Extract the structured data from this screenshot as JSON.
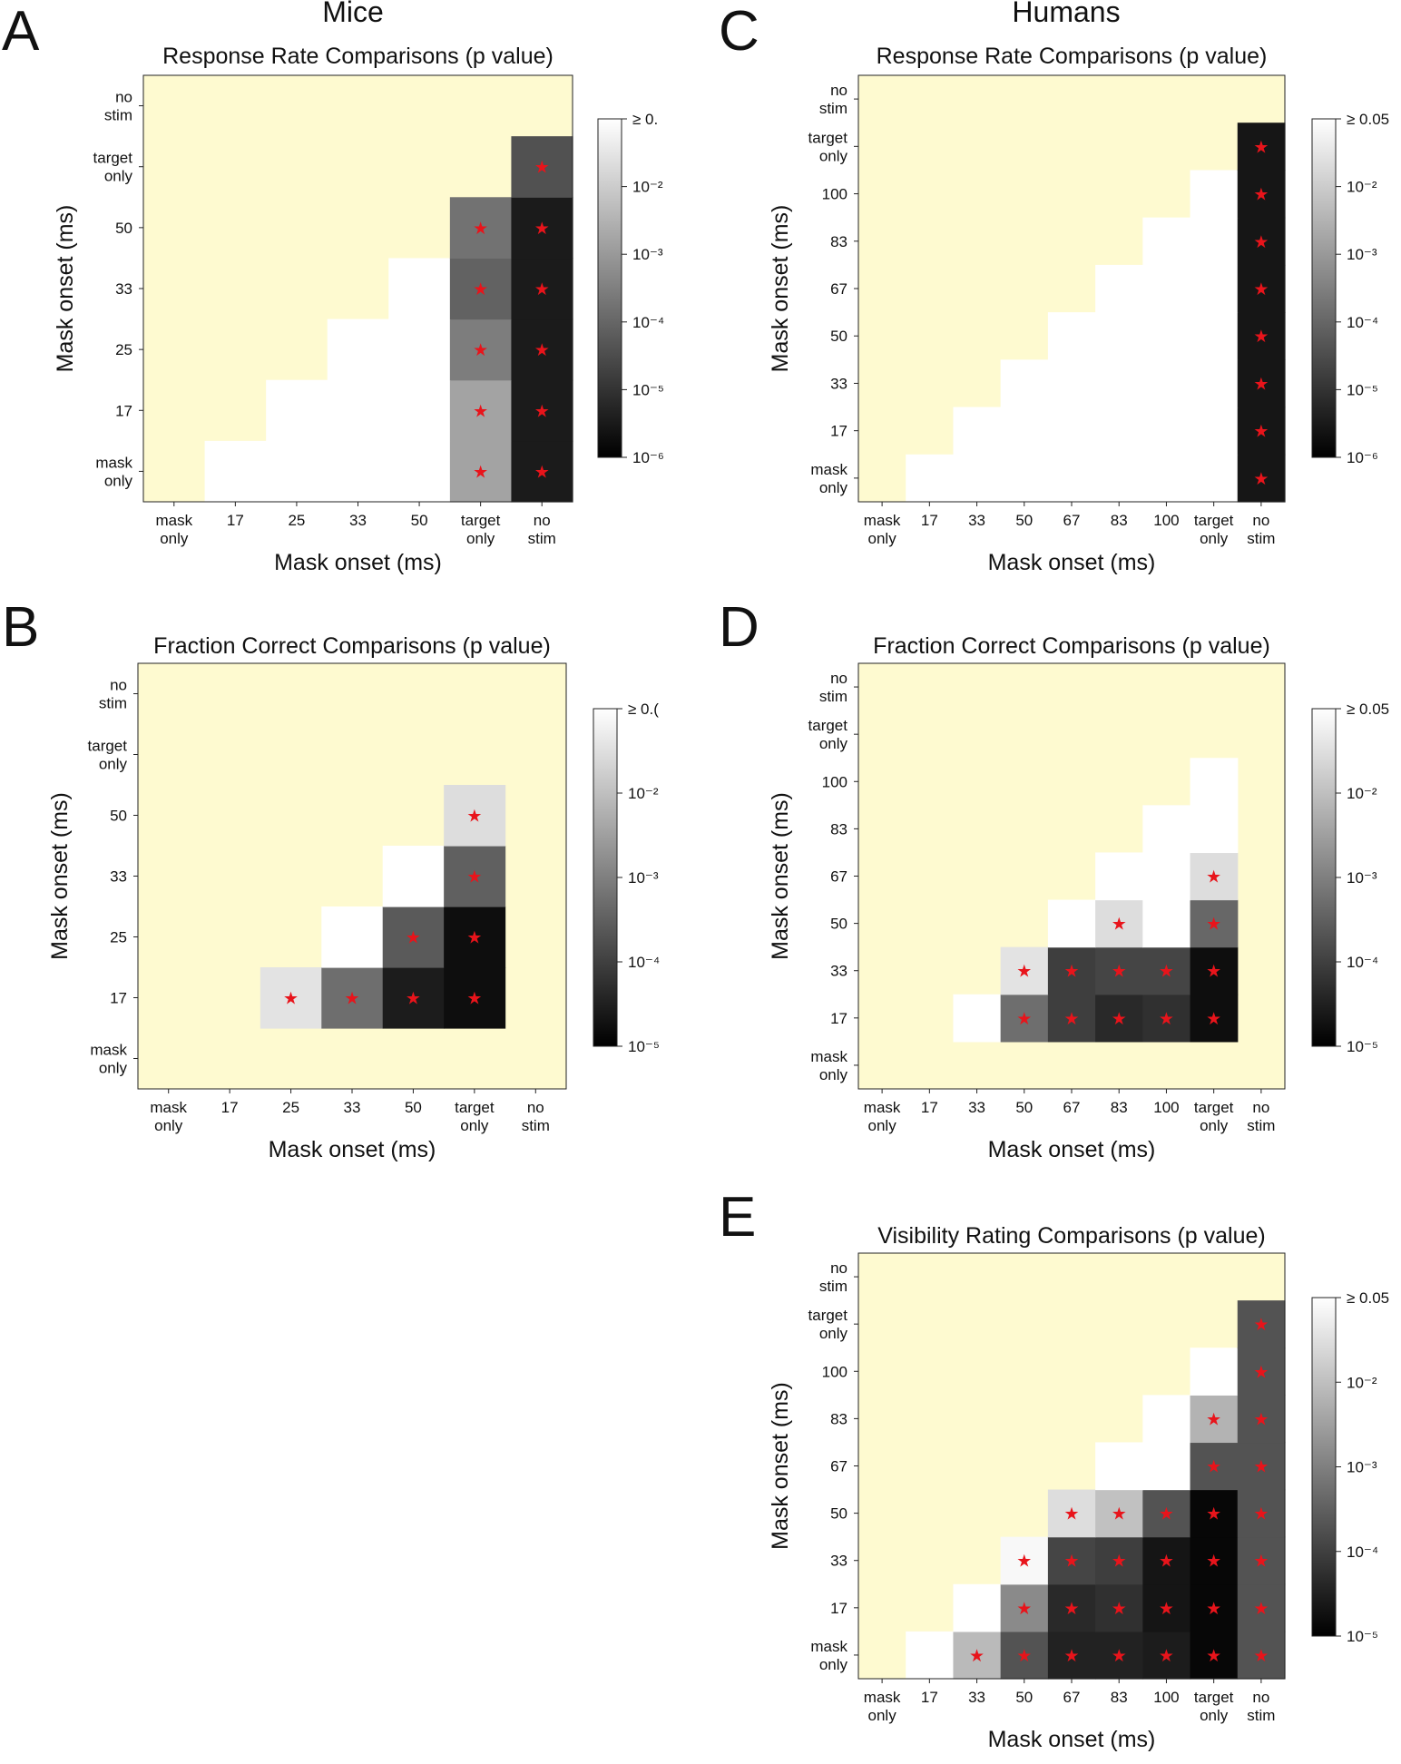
{
  "figure": {
    "column_titles": {
      "mice": "Mice",
      "humans": "Humans"
    }
  },
  "chart_data": [
    {
      "id": "A",
      "type": "heatmap",
      "panel_letter": "A",
      "title": "Response Rate Comparisons (p value)",
      "xlabel": "Mask onset (ms)",
      "ylabel": "Mask onset (ms)",
      "tick_labels": [
        "mask only",
        "17",
        "25",
        "33",
        "50",
        "target only",
        "no stim"
      ],
      "colorbar": {
        "label_min": "10⁻⁶",
        "labels": [
          "≥ 0.",
          "10⁻²",
          "10⁻³",
          "10⁻⁴",
          "10⁻⁵",
          "10⁻⁶"
        ],
        "log_min": -6,
        "log_max": -1.3
      },
      "cells": [
        {
          "row": 0,
          "col": 1,
          "log10p": -1.3,
          "sig": false
        },
        {
          "row": 0,
          "col": 2,
          "log10p": -1.3,
          "sig": false
        },
        {
          "row": 0,
          "col": 3,
          "log10p": -1.3,
          "sig": false
        },
        {
          "row": 0,
          "col": 4,
          "log10p": -1.3,
          "sig": false
        },
        {
          "row": 0,
          "col": 5,
          "log10p": -3.0,
          "sig": true
        },
        {
          "row": 0,
          "col": 6,
          "log10p": -5.5,
          "sig": true
        },
        {
          "row": 1,
          "col": 2,
          "log10p": -1.3,
          "sig": false
        },
        {
          "row": 1,
          "col": 3,
          "log10p": -1.3,
          "sig": false
        },
        {
          "row": 1,
          "col": 4,
          "log10p": -1.3,
          "sig": false
        },
        {
          "row": 1,
          "col": 5,
          "log10p": -3.0,
          "sig": true
        },
        {
          "row": 1,
          "col": 6,
          "log10p": -5.5,
          "sig": true
        },
        {
          "row": 2,
          "col": 3,
          "log10p": -1.3,
          "sig": false
        },
        {
          "row": 2,
          "col": 4,
          "log10p": -1.3,
          "sig": false
        },
        {
          "row": 2,
          "col": 5,
          "log10p": -3.7,
          "sig": true
        },
        {
          "row": 2,
          "col": 6,
          "log10p": -5.5,
          "sig": true
        },
        {
          "row": 3,
          "col": 4,
          "log10p": -1.3,
          "sig": false
        },
        {
          "row": 3,
          "col": 5,
          "log10p": -4.2,
          "sig": true
        },
        {
          "row": 3,
          "col": 6,
          "log10p": -5.5,
          "sig": true
        },
        {
          "row": 4,
          "col": 5,
          "log10p": -3.9,
          "sig": true
        },
        {
          "row": 4,
          "col": 6,
          "log10p": -5.5,
          "sig": true
        },
        {
          "row": 5,
          "col": 6,
          "log10p": -4.5,
          "sig": true
        }
      ]
    },
    {
      "id": "B",
      "type": "heatmap",
      "panel_letter": "B",
      "title": "Fraction Correct Comparisons (p value)",
      "xlabel": "Mask onset (ms)",
      "ylabel": "Mask onset (ms)",
      "tick_labels": [
        "mask only",
        "17",
        "25",
        "33",
        "50",
        "target only",
        "no stim"
      ],
      "colorbar": {
        "labels": [
          "≥ 0.(",
          "10⁻²",
          "10⁻³",
          "10⁻⁴",
          "10⁻⁵"
        ],
        "log_min": -5,
        "log_max": -1.3
      },
      "cells": [
        {
          "row": 1,
          "col": 2,
          "log10p": -1.7,
          "sig": true
        },
        {
          "row": 1,
          "col": 3,
          "log10p": -3.4,
          "sig": true
        },
        {
          "row": 1,
          "col": 4,
          "log10p": -4.6,
          "sig": true
        },
        {
          "row": 1,
          "col": 5,
          "log10p": -4.8,
          "sig": true
        },
        {
          "row": 2,
          "col": 3,
          "log10p": -1.3,
          "sig": false
        },
        {
          "row": 2,
          "col": 4,
          "log10p": -3.7,
          "sig": true
        },
        {
          "row": 2,
          "col": 5,
          "log10p": -4.8,
          "sig": true
        },
        {
          "row": 3,
          "col": 4,
          "log10p": -1.3,
          "sig": false
        },
        {
          "row": 3,
          "col": 5,
          "log10p": -3.6,
          "sig": true
        },
        {
          "row": 4,
          "col": 5,
          "log10p": -1.8,
          "sig": true
        }
      ]
    },
    {
      "id": "C",
      "type": "heatmap",
      "panel_letter": "C",
      "title": "Response Rate Comparisons (p value)",
      "xlabel": "Mask onset (ms)",
      "ylabel": "Mask onset (ms)",
      "tick_labels": [
        "mask only",
        "17",
        "33",
        "50",
        "67",
        "83",
        "100",
        "target only",
        "no stim"
      ],
      "colorbar": {
        "labels": [
          "≥ 0.05",
          "10⁻²",
          "10⁻³",
          "10⁻⁴",
          "10⁻⁵",
          "10⁻⁶"
        ],
        "log_min": -6,
        "log_max": -1.3
      },
      "cells": [
        {
          "row": 0,
          "col": 1,
          "log10p": -1.3,
          "sig": false
        },
        {
          "row": 0,
          "col": 2,
          "log10p": -1.3,
          "sig": false
        },
        {
          "row": 0,
          "col": 3,
          "log10p": -1.3,
          "sig": false
        },
        {
          "row": 0,
          "col": 4,
          "log10p": -1.3,
          "sig": false
        },
        {
          "row": 0,
          "col": 5,
          "log10p": -1.3,
          "sig": false
        },
        {
          "row": 0,
          "col": 6,
          "log10p": -1.3,
          "sig": false
        },
        {
          "row": 0,
          "col": 7,
          "log10p": -1.3,
          "sig": false
        },
        {
          "row": 0,
          "col": 8,
          "log10p": -5.6,
          "sig": true
        },
        {
          "row": 1,
          "col": 2,
          "log10p": -1.3,
          "sig": false
        },
        {
          "row": 1,
          "col": 3,
          "log10p": -1.3,
          "sig": false
        },
        {
          "row": 1,
          "col": 4,
          "log10p": -1.3,
          "sig": false
        },
        {
          "row": 1,
          "col": 5,
          "log10p": -1.3,
          "sig": false
        },
        {
          "row": 1,
          "col": 6,
          "log10p": -1.3,
          "sig": false
        },
        {
          "row": 1,
          "col": 7,
          "log10p": -1.3,
          "sig": false
        },
        {
          "row": 1,
          "col": 8,
          "log10p": -5.6,
          "sig": true
        },
        {
          "row": 2,
          "col": 3,
          "log10p": -1.3,
          "sig": false
        },
        {
          "row": 2,
          "col": 4,
          "log10p": -1.3,
          "sig": false
        },
        {
          "row": 2,
          "col": 5,
          "log10p": -1.3,
          "sig": false
        },
        {
          "row": 2,
          "col": 6,
          "log10p": -1.3,
          "sig": false
        },
        {
          "row": 2,
          "col": 7,
          "log10p": -1.3,
          "sig": false
        },
        {
          "row": 2,
          "col": 8,
          "log10p": -5.6,
          "sig": true
        },
        {
          "row": 3,
          "col": 4,
          "log10p": -1.3,
          "sig": false
        },
        {
          "row": 3,
          "col": 5,
          "log10p": -1.3,
          "sig": false
        },
        {
          "row": 3,
          "col": 6,
          "log10p": -1.3,
          "sig": false
        },
        {
          "row": 3,
          "col": 7,
          "log10p": -1.3,
          "sig": false
        },
        {
          "row": 3,
          "col": 8,
          "log10p": -5.6,
          "sig": true
        },
        {
          "row": 4,
          "col": 5,
          "log10p": -1.3,
          "sig": false
        },
        {
          "row": 4,
          "col": 6,
          "log10p": -1.3,
          "sig": false
        },
        {
          "row": 4,
          "col": 7,
          "log10p": -1.3,
          "sig": false
        },
        {
          "row": 4,
          "col": 8,
          "log10p": -5.6,
          "sig": true
        },
        {
          "row": 5,
          "col": 6,
          "log10p": -1.3,
          "sig": false
        },
        {
          "row": 5,
          "col": 7,
          "log10p": -1.3,
          "sig": false
        },
        {
          "row": 5,
          "col": 8,
          "log10p": -5.6,
          "sig": true
        },
        {
          "row": 6,
          "col": 7,
          "log10p": -1.3,
          "sig": false
        },
        {
          "row": 6,
          "col": 8,
          "log10p": -5.6,
          "sig": true
        },
        {
          "row": 7,
          "col": 8,
          "log10p": -5.6,
          "sig": true
        }
      ]
    },
    {
      "id": "D",
      "type": "heatmap",
      "panel_letter": "D",
      "title": "Fraction Correct Comparisons (p value)",
      "xlabel": "Mask onset (ms)",
      "ylabel": "Mask onset (ms)",
      "tick_labels": [
        "mask only",
        "17",
        "33",
        "50",
        "67",
        "83",
        "100",
        "target only",
        "no stim"
      ],
      "colorbar": {
        "labels": [
          "≥ 0.05",
          "10⁻²",
          "10⁻³",
          "10⁻⁴",
          "10⁻⁵"
        ],
        "log_min": -5,
        "log_max": -1.3
      },
      "cells": [
        {
          "row": 1,
          "col": 2,
          "log10p": -1.3,
          "sig": false
        },
        {
          "row": 1,
          "col": 3,
          "log10p": -3.4,
          "sig": true
        },
        {
          "row": 1,
          "col": 4,
          "log10p": -4.1,
          "sig": true
        },
        {
          "row": 1,
          "col": 5,
          "log10p": -4.4,
          "sig": true
        },
        {
          "row": 1,
          "col": 6,
          "log10p": -4.3,
          "sig": true
        },
        {
          "row": 1,
          "col": 7,
          "log10p": -4.8,
          "sig": true
        },
        {
          "row": 2,
          "col": 3,
          "log10p": -1.7,
          "sig": true
        },
        {
          "row": 2,
          "col": 4,
          "log10p": -4.1,
          "sig": true
        },
        {
          "row": 2,
          "col": 5,
          "log10p": -4.0,
          "sig": true
        },
        {
          "row": 2,
          "col": 6,
          "log10p": -4.0,
          "sig": true
        },
        {
          "row": 2,
          "col": 7,
          "log10p": -4.8,
          "sig": true
        },
        {
          "row": 3,
          "col": 4,
          "log10p": -1.3,
          "sig": false
        },
        {
          "row": 3,
          "col": 5,
          "log10p": -1.8,
          "sig": true
        },
        {
          "row": 3,
          "col": 6,
          "log10p": -1.3,
          "sig": false
        },
        {
          "row": 3,
          "col": 7,
          "log10p": -3.5,
          "sig": true
        },
        {
          "row": 4,
          "col": 5,
          "log10p": -1.3,
          "sig": false
        },
        {
          "row": 4,
          "col": 6,
          "log10p": -1.3,
          "sig": false
        },
        {
          "row": 4,
          "col": 7,
          "log10p": -1.8,
          "sig": true
        },
        {
          "row": 5,
          "col": 6,
          "log10p": -1.3,
          "sig": false
        },
        {
          "row": 5,
          "col": 7,
          "log10p": -1.3,
          "sig": false
        },
        {
          "row": 6,
          "col": 7,
          "log10p": -1.3,
          "sig": false
        }
      ]
    },
    {
      "id": "E",
      "type": "heatmap",
      "panel_letter": "E",
      "title": "Visibility Rating Comparisons (p value)",
      "xlabel": "Mask onset (ms)",
      "ylabel": "Mask onset (ms)",
      "tick_labels": [
        "mask only",
        "17",
        "33",
        "50",
        "67",
        "83",
        "100",
        "target only",
        "no stim"
      ],
      "colorbar": {
        "labels": [
          "≥ 0.05",
          "10⁻²",
          "10⁻³",
          "10⁻⁴",
          "10⁻⁵"
        ],
        "log_min": -5,
        "log_max": -1.3
      },
      "cells": [
        {
          "row": 0,
          "col": 1,
          "log10p": -1.3,
          "sig": false
        },
        {
          "row": 0,
          "col": 2,
          "log10p": -2.3,
          "sig": true
        },
        {
          "row": 0,
          "col": 3,
          "log10p": -3.8,
          "sig": true
        },
        {
          "row": 0,
          "col": 4,
          "log10p": -4.5,
          "sig": true
        },
        {
          "row": 0,
          "col": 5,
          "log10p": -4.5,
          "sig": true
        },
        {
          "row": 0,
          "col": 6,
          "log10p": -4.6,
          "sig": true
        },
        {
          "row": 0,
          "col": 7,
          "log10p": -4.9,
          "sig": true
        },
        {
          "row": 0,
          "col": 8,
          "log10p": -3.8,
          "sig": true
        },
        {
          "row": 1,
          "col": 2,
          "log10p": -1.3,
          "sig": false
        },
        {
          "row": 1,
          "col": 3,
          "log10p": -3.0,
          "sig": true
        },
        {
          "row": 1,
          "col": 4,
          "log10p": -4.4,
          "sig": true
        },
        {
          "row": 1,
          "col": 5,
          "log10p": -4.3,
          "sig": true
        },
        {
          "row": 1,
          "col": 6,
          "log10p": -4.7,
          "sig": true
        },
        {
          "row": 1,
          "col": 7,
          "log10p": -4.9,
          "sig": true
        },
        {
          "row": 1,
          "col": 8,
          "log10p": -3.8,
          "sig": true
        },
        {
          "row": 2,
          "col": 3,
          "log10p": -1.4,
          "sig": true
        },
        {
          "row": 2,
          "col": 4,
          "log10p": -4.0,
          "sig": true
        },
        {
          "row": 2,
          "col": 5,
          "log10p": -4.1,
          "sig": true
        },
        {
          "row": 2,
          "col": 6,
          "log10p": -4.7,
          "sig": true
        },
        {
          "row": 2,
          "col": 7,
          "log10p": -4.9,
          "sig": true
        },
        {
          "row": 2,
          "col": 8,
          "log10p": -3.8,
          "sig": true
        },
        {
          "row": 3,
          "col": 4,
          "log10p": -1.8,
          "sig": true
        },
        {
          "row": 3,
          "col": 5,
          "log10p": -2.2,
          "sig": true
        },
        {
          "row": 3,
          "col": 6,
          "log10p": -3.8,
          "sig": true
        },
        {
          "row": 3,
          "col": 7,
          "log10p": -4.9,
          "sig": true
        },
        {
          "row": 3,
          "col": 8,
          "log10p": -3.8,
          "sig": true
        },
        {
          "row": 4,
          "col": 5,
          "log10p": -1.3,
          "sig": false
        },
        {
          "row": 4,
          "col": 6,
          "log10p": -1.3,
          "sig": false
        },
        {
          "row": 4,
          "col": 7,
          "log10p": -3.8,
          "sig": true
        },
        {
          "row": 4,
          "col": 8,
          "log10p": -3.8,
          "sig": true
        },
        {
          "row": 5,
          "col": 6,
          "log10p": -1.3,
          "sig": false
        },
        {
          "row": 5,
          "col": 7,
          "log10p": -2.4,
          "sig": true
        },
        {
          "row": 5,
          "col": 8,
          "log10p": -3.8,
          "sig": true
        },
        {
          "row": 6,
          "col": 7,
          "log10p": -1.3,
          "sig": false
        },
        {
          "row": 6,
          "col": 8,
          "log10p": -3.8,
          "sig": true
        },
        {
          "row": 7,
          "col": 8,
          "log10p": -3.8,
          "sig": true
        }
      ]
    }
  ]
}
